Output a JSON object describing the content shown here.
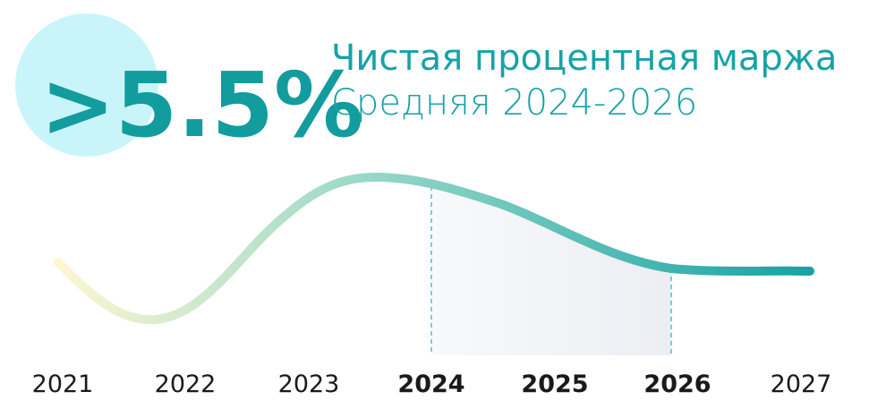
{
  "headline": ">5.5%",
  "title": "Чистая процентная маржа",
  "subtitle": "Средняя 2024-2026",
  "years": [
    {
      "label": "2021",
      "highlighted": false
    },
    {
      "label": "2022",
      "highlighted": false
    },
    {
      "label": "2023",
      "highlighted": false
    },
    {
      "label": "2024",
      "highlighted": true
    },
    {
      "label": "2025",
      "highlighted": true
    },
    {
      "label": "2026",
      "highlighted": true
    },
    {
      "label": "2027",
      "highlighted": false
    }
  ]
}
